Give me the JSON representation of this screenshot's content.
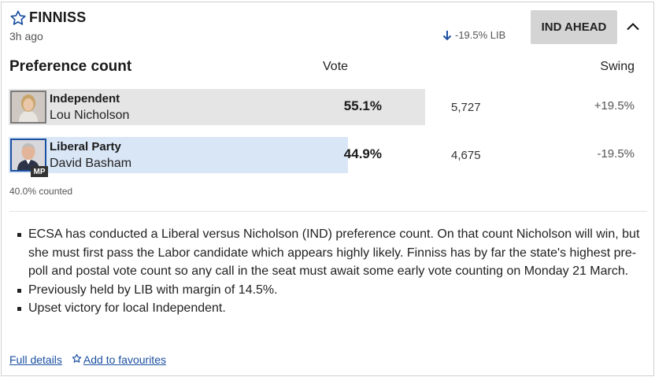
{
  "header": {
    "seat_name": "FINNISS",
    "updated": "3h ago",
    "swing_summary": "-19.5% LIB",
    "ahead_label": "IND AHEAD"
  },
  "count": {
    "title": "Preference count",
    "col_vote": "Vote",
    "col_swing": "Swing",
    "rows": [
      {
        "party": "Independent",
        "candidate": "Lou Nicholson",
        "pct": "55.1%",
        "votes": "5,727",
        "swing": "+19.5%",
        "share": 0.551,
        "bar_color": "#e5e5e5",
        "mp": false
      },
      {
        "party": "Liberal Party",
        "candidate": "David Basham",
        "pct": "44.9%",
        "votes": "4,675",
        "swing": "-19.5%",
        "share": 0.449,
        "bar_color": "#d9e6f6",
        "mp": true,
        "mp_label": "MP"
      }
    ],
    "counted": "40.0% counted"
  },
  "notes": [
    "ECSA has conducted a Liberal versus Nicholson (IND) preference count. On that count Nicholson will win, but she must first pass the Labor candidate which appears highly likely. Finniss has by far the state's highest pre-poll and postal vote count so any call in the seat must await some early vote counting on Monday 21 March.",
    "Previously held by LIB with margin of 14.5%.",
    "Upset victory for local Independent."
  ],
  "footer": {
    "full_details": "Full details",
    "add_favourites": "Add to favourites"
  },
  "colors": {
    "accent_link": "#1b4fa0",
    "lib_blue": "#1b4fa0",
    "badge_bg": "#d4d4d4"
  },
  "icons": {
    "star": "star-outline-icon",
    "arrow": "arrow-down-icon",
    "chevron": "chevron-up-icon"
  }
}
